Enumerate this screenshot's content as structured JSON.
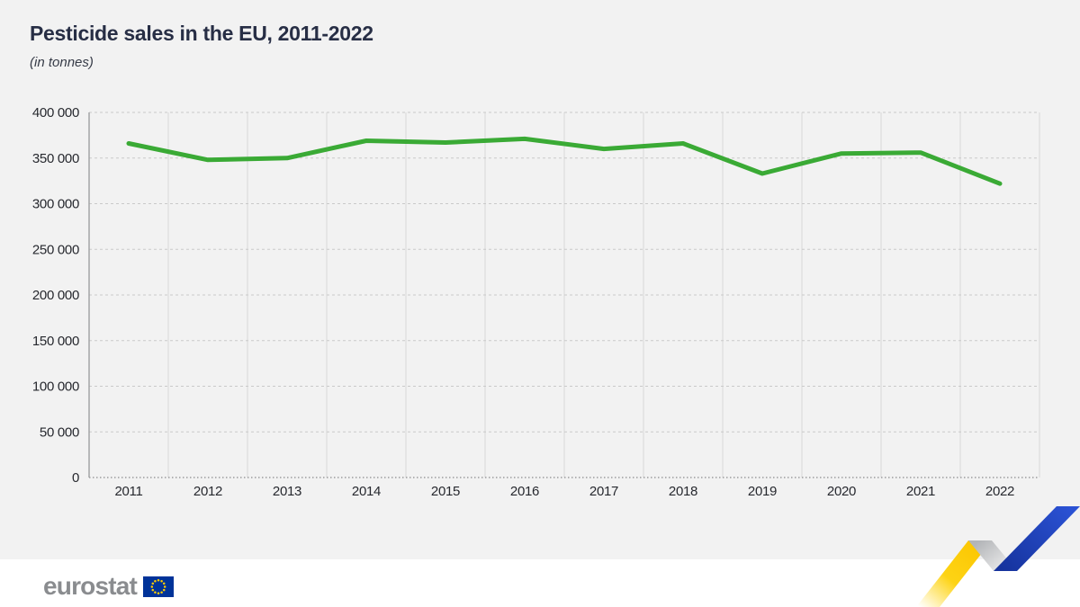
{
  "chart_data": {
    "type": "line",
    "title": "Pesticide sales in the EU, 2011-2022",
    "subtitle": "(in tonnes)",
    "categories": [
      "2011",
      "2012",
      "2013",
      "2014",
      "2015",
      "2016",
      "2017",
      "2018",
      "2019",
      "2020",
      "2021",
      "2022"
    ],
    "series": [
      {
        "name": "Pesticide sales",
        "color": "#3aaa35",
        "values": [
          366000,
          348000,
          350000,
          369000,
          367000,
          371000,
          360000,
          366000,
          333000,
          355000,
          356000,
          322000
        ]
      }
    ],
    "xlabel": "",
    "ylabel": "",
    "ylim": [
      0,
      400000
    ],
    "ytick_step": 50000,
    "ytick_labels": [
      "0",
      "50 000",
      "100 000",
      "150 000",
      "200 000",
      "250 000",
      "300 000",
      "350 000",
      "400 000"
    ],
    "grid": "on",
    "legend": "none"
  },
  "footer": {
    "logo_text": "eurostat"
  },
  "style": {
    "background": "#f2f2f2",
    "footer_background": "#ffffff",
    "title_color": "#272e45",
    "axis_label_color": "#27292f",
    "grid_vertical_color": "#d8d8d8",
    "grid_horizontal_color": "#c9c9c9",
    "axis_line_color": "#a3a4a6",
    "bottom_axis_color": "#9b9c9e",
    "line_color": "#3aaa35",
    "logo_color": "#8a8c8f",
    "eu_flag_blue": "#003399",
    "eu_flag_star": "#ffcc00",
    "ribbon_yellow": "#fcc500",
    "ribbon_gray": "#b3b5b8",
    "ribbon_blue": "#2347c5"
  }
}
